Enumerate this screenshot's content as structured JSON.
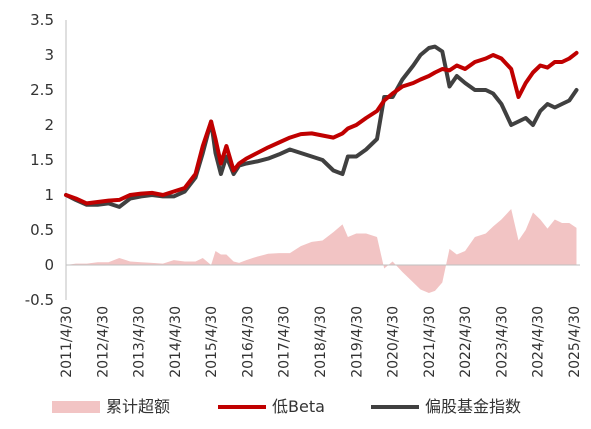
{
  "chart_data": {
    "type": "line",
    "title": "",
    "xlabel": "",
    "ylabel": "",
    "ylim": [
      -0.5,
      3.5
    ],
    "yticks": [
      "3.5",
      "3",
      "2.5",
      "2",
      "1.5",
      "1",
      "0.5",
      "0",
      "-0.5"
    ],
    "xticks": [
      "2011/4/30",
      "2012/4/30",
      "2013/4/30",
      "2014/4/30",
      "2015/4/30",
      "2016/4/30",
      "2017/4/30",
      "2018/4/30",
      "2019/4/30",
      "2020/4/30",
      "2021/4/30",
      "2022/4/30",
      "2023/4/30",
      "2024/4/30",
      "2025/4/30"
    ],
    "grid": false,
    "legend_position": "bottom",
    "x": [
      2011.33,
      2011.6,
      2011.9,
      2012.2,
      2012.5,
      2012.8,
      2013.1,
      2013.4,
      2013.7,
      2014.0,
      2014.3,
      2014.6,
      2014.9,
      2015.1,
      2015.33,
      2015.45,
      2015.6,
      2015.75,
      2015.95,
      2016.1,
      2016.3,
      2016.6,
      2016.9,
      2017.2,
      2017.5,
      2017.8,
      2018.1,
      2018.4,
      2018.7,
      2018.95,
      2019.1,
      2019.33,
      2019.6,
      2019.9,
      2020.1,
      2020.33,
      2020.6,
      2020.9,
      2021.1,
      2021.33,
      2021.5,
      2021.7,
      2021.9,
      2022.1,
      2022.33,
      2022.6,
      2022.9,
      2023.1,
      2023.33,
      2023.6,
      2023.8,
      2024.0,
      2024.2,
      2024.4,
      2024.6,
      2024.8,
      2025.0,
      2025.2,
      2025.4
    ],
    "series": [
      {
        "name": "低Beta",
        "color": "#c00000",
        "values": [
          1.0,
          0.95,
          0.88,
          0.9,
          0.92,
          0.93,
          1.0,
          1.02,
          1.03,
          1.0,
          1.05,
          1.1,
          1.3,
          1.7,
          2.05,
          1.8,
          1.45,
          1.7,
          1.35,
          1.45,
          1.52,
          1.6,
          1.68,
          1.75,
          1.82,
          1.87,
          1.88,
          1.85,
          1.82,
          1.88,
          1.95,
          2.0,
          2.1,
          2.2,
          2.35,
          2.45,
          2.55,
          2.6,
          2.65,
          2.7,
          2.75,
          2.8,
          2.78,
          2.85,
          2.8,
          2.9,
          2.95,
          3.0,
          2.95,
          2.8,
          2.4,
          2.6,
          2.75,
          2.85,
          2.82,
          2.9,
          2.9,
          2.95,
          3.03
        ]
      },
      {
        "name": "偏股基金指数",
        "color": "#404040",
        "values": [
          1.0,
          0.93,
          0.86,
          0.86,
          0.88,
          0.83,
          0.95,
          0.98,
          1.0,
          0.98,
          0.98,
          1.05,
          1.25,
          1.6,
          2.05,
          1.6,
          1.3,
          1.55,
          1.3,
          1.42,
          1.45,
          1.48,
          1.52,
          1.58,
          1.65,
          1.6,
          1.55,
          1.5,
          1.35,
          1.3,
          1.55,
          1.55,
          1.65,
          1.8,
          2.4,
          2.4,
          2.65,
          2.85,
          3.0,
          3.1,
          3.12,
          3.05,
          2.55,
          2.7,
          2.6,
          2.5,
          2.5,
          2.45,
          2.3,
          2.0,
          2.05,
          2.1,
          2.0,
          2.2,
          2.3,
          2.25,
          2.3,
          2.35,
          2.5
        ]
      },
      {
        "name": "累计超额",
        "color": "#f2c4c4",
        "type": "area",
        "values": [
          0.0,
          0.02,
          0.02,
          0.04,
          0.04,
          0.1,
          0.05,
          0.04,
          0.03,
          0.02,
          0.07,
          0.05,
          0.05,
          0.1,
          0.0,
          0.2,
          0.15,
          0.15,
          0.05,
          0.03,
          0.07,
          0.12,
          0.16,
          0.17,
          0.17,
          0.27,
          0.33,
          0.35,
          0.47,
          0.58,
          0.4,
          0.45,
          0.45,
          0.4,
          -0.05,
          0.05,
          -0.1,
          -0.25,
          -0.35,
          -0.4,
          -0.37,
          -0.25,
          0.23,
          0.15,
          0.2,
          0.4,
          0.45,
          0.55,
          0.65,
          0.8,
          0.35,
          0.5,
          0.75,
          0.65,
          0.52,
          0.65,
          0.6,
          0.6,
          0.53
        ]
      }
    ],
    "legend": [
      "累计超额",
      "低Beta",
      "偏股基金指数"
    ]
  }
}
